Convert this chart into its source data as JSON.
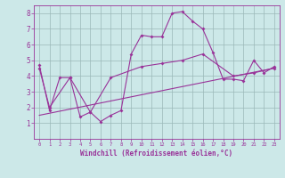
{
  "xlabel": "Windchill (Refroidissement éolien,°C)",
  "background_color": "#cce8e8",
  "grid_color": "#9ab8b8",
  "line_color": "#993399",
  "xlim": [
    -0.5,
    23.5
  ],
  "ylim": [
    0,
    8.5
  ],
  "xticks": [
    0,
    1,
    2,
    3,
    4,
    5,
    6,
    7,
    8,
    9,
    10,
    11,
    12,
    13,
    14,
    15,
    16,
    17,
    18,
    19,
    20,
    21,
    22,
    23
  ],
  "yticks": [
    1,
    2,
    3,
    4,
    5,
    6,
    7,
    8
  ],
  "curve1_x": [
    0,
    1,
    2,
    3,
    4,
    5,
    6,
    7,
    8,
    9,
    10,
    11,
    12,
    13,
    14,
    15,
    16,
    17,
    18,
    19,
    20,
    21,
    22,
    23
  ],
  "curve1_y": [
    4.7,
    1.8,
    3.9,
    3.9,
    1.4,
    1.7,
    1.1,
    1.5,
    1.8,
    5.4,
    6.6,
    6.5,
    6.5,
    8.0,
    8.1,
    7.5,
    7.0,
    5.5,
    3.8,
    3.8,
    3.7,
    5.0,
    4.2,
    4.6
  ],
  "curve2_x": [
    0,
    1,
    3,
    5,
    7,
    10,
    12,
    14,
    16,
    19,
    21,
    23
  ],
  "curve2_y": [
    4.5,
    2.0,
    3.9,
    1.7,
    3.9,
    4.6,
    4.8,
    5.0,
    5.4,
    4.0,
    4.2,
    4.5
  ],
  "curve3_x": [
    0,
    23
  ],
  "curve3_y": [
    1.5,
    4.5
  ],
  "tick_fontsize": 5,
  "xlabel_fontsize": 5.5
}
